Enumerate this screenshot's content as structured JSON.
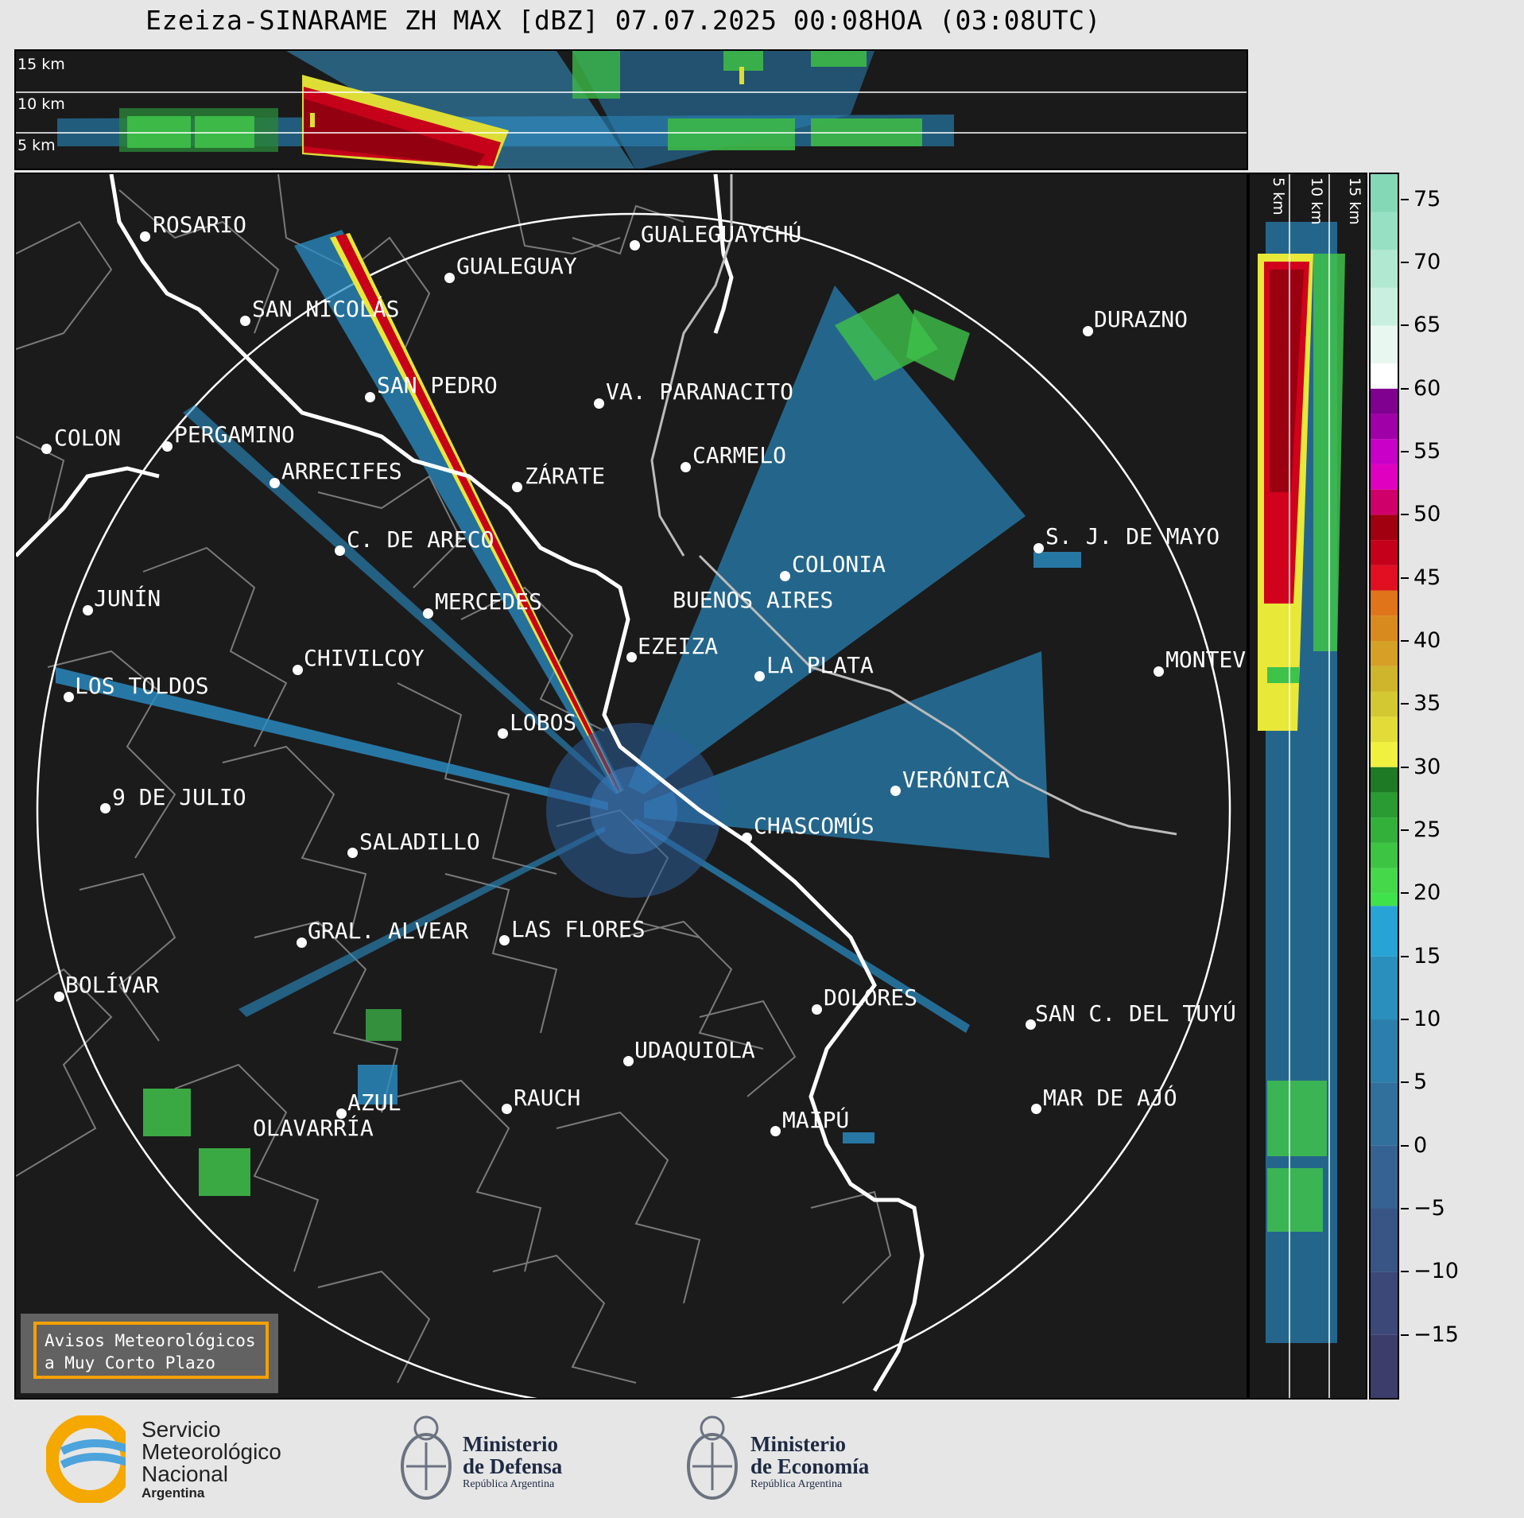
{
  "title": "Ezeiza-SINARAME ZH MAX [dBZ] 07.07.2025 00:08HOA (03:08UTC)",
  "vertical_strip": {
    "height_labels": [
      "15 km",
      "10 km",
      "5 km"
    ]
  },
  "side_strip": {
    "height_labels": [
      "5 km",
      "10 km",
      "15 km"
    ]
  },
  "colorbar": {
    "unit": "dBZ",
    "tick_labels": [
      "75",
      "70",
      "65",
      "60",
      "55",
      "50",
      "45",
      "40",
      "35",
      "30",
      "25",
      "20",
      "15",
      "10",
      "5",
      "0",
      "−5",
      "−10",
      "−15"
    ],
    "range": [
      -20,
      77
    ]
  },
  "cities": [
    {
      "name": "ROSARIO"
    },
    {
      "name": "GUALEGUAYCHÚ"
    },
    {
      "name": "GUALEGUAY"
    },
    {
      "name": "SAN NICOLÁS"
    },
    {
      "name": "DURAZNO"
    },
    {
      "name": "SAN PEDRO"
    },
    {
      "name": "VA. PARANACITO"
    },
    {
      "name": "COLON"
    },
    {
      "name": "PERGAMINO"
    },
    {
      "name": "CARMELO"
    },
    {
      "name": "ARRECIFES"
    },
    {
      "name": "ZÁRATE"
    },
    {
      "name": "S. J. DE MAYO"
    },
    {
      "name": "C. DE ARECO"
    },
    {
      "name": "COLONIA"
    },
    {
      "name": "JUNÍN"
    },
    {
      "name": "BUENOS AIRES"
    },
    {
      "name": "MERCEDES"
    },
    {
      "name": "MONTEV"
    },
    {
      "name": "EZEIZA"
    },
    {
      "name": "CHIVILCOY"
    },
    {
      "name": "LA PLATA"
    },
    {
      "name": "LOS TOLDOS"
    },
    {
      "name": "LOBOS"
    },
    {
      "name": "VERÓNICA"
    },
    {
      "name": "9 DE JULIO"
    },
    {
      "name": "CHASCOMÚS"
    },
    {
      "name": "SALADILLO"
    },
    {
      "name": "GRAL. ALVEAR"
    },
    {
      "name": "LAS FLORES"
    },
    {
      "name": "BOLÍVAR"
    },
    {
      "name": "DOLORES"
    },
    {
      "name": "SAN C. DEL TUYÚ"
    },
    {
      "name": "UDAQUIOLA"
    },
    {
      "name": "MAR DE AJÓ"
    },
    {
      "name": "RAUCH"
    },
    {
      "name": "AZUL"
    },
    {
      "name": "OLAVARRÍA"
    },
    {
      "name": "MAIPÚ"
    }
  ],
  "notice": {
    "line1": "Avisos Meteorológicos",
    "line2": "a Muy Corto Plazo"
  },
  "footer": {
    "smn": {
      "line1": "Servicio",
      "line2": "Meteorológico",
      "line3": "Nacional",
      "line4": "Argentina"
    },
    "defensa": {
      "line1": "Ministerio",
      "line2": "de Defensa",
      "line3": "República Argentina"
    },
    "economia": {
      "line1": "Ministerio",
      "line2": "de Economía",
      "line3": "República Argentina"
    }
  }
}
